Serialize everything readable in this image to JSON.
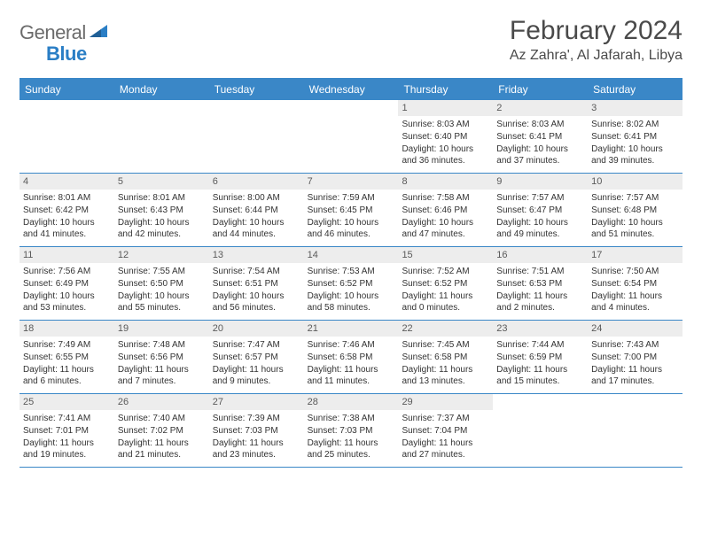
{
  "brand": {
    "gray": "General",
    "blue": "Blue"
  },
  "header": {
    "title": "February 2024",
    "location": "Az Zahra', Al Jafarah, Libya"
  },
  "colors": {
    "accent": "#3a87c7",
    "header_text": "#ffffff",
    "daynum_bg": "#ededed",
    "text": "#333333",
    "muted": "#6b6b6b"
  },
  "weekdays": [
    "Sunday",
    "Monday",
    "Tuesday",
    "Wednesday",
    "Thursday",
    "Friday",
    "Saturday"
  ],
  "weeks": [
    [
      {
        "n": "",
        "sr": "",
        "ss": "",
        "dl": ""
      },
      {
        "n": "",
        "sr": "",
        "ss": "",
        "dl": ""
      },
      {
        "n": "",
        "sr": "",
        "ss": "",
        "dl": ""
      },
      {
        "n": "",
        "sr": "",
        "ss": "",
        "dl": ""
      },
      {
        "n": "1",
        "sr": "Sunrise: 8:03 AM",
        "ss": "Sunset: 6:40 PM",
        "dl": "Daylight: 10 hours and 36 minutes."
      },
      {
        "n": "2",
        "sr": "Sunrise: 8:03 AM",
        "ss": "Sunset: 6:41 PM",
        "dl": "Daylight: 10 hours and 37 minutes."
      },
      {
        "n": "3",
        "sr": "Sunrise: 8:02 AM",
        "ss": "Sunset: 6:41 PM",
        "dl": "Daylight: 10 hours and 39 minutes."
      }
    ],
    [
      {
        "n": "4",
        "sr": "Sunrise: 8:01 AM",
        "ss": "Sunset: 6:42 PM",
        "dl": "Daylight: 10 hours and 41 minutes."
      },
      {
        "n": "5",
        "sr": "Sunrise: 8:01 AM",
        "ss": "Sunset: 6:43 PM",
        "dl": "Daylight: 10 hours and 42 minutes."
      },
      {
        "n": "6",
        "sr": "Sunrise: 8:00 AM",
        "ss": "Sunset: 6:44 PM",
        "dl": "Daylight: 10 hours and 44 minutes."
      },
      {
        "n": "7",
        "sr": "Sunrise: 7:59 AM",
        "ss": "Sunset: 6:45 PM",
        "dl": "Daylight: 10 hours and 46 minutes."
      },
      {
        "n": "8",
        "sr": "Sunrise: 7:58 AM",
        "ss": "Sunset: 6:46 PM",
        "dl": "Daylight: 10 hours and 47 minutes."
      },
      {
        "n": "9",
        "sr": "Sunrise: 7:57 AM",
        "ss": "Sunset: 6:47 PM",
        "dl": "Daylight: 10 hours and 49 minutes."
      },
      {
        "n": "10",
        "sr": "Sunrise: 7:57 AM",
        "ss": "Sunset: 6:48 PM",
        "dl": "Daylight: 10 hours and 51 minutes."
      }
    ],
    [
      {
        "n": "11",
        "sr": "Sunrise: 7:56 AM",
        "ss": "Sunset: 6:49 PM",
        "dl": "Daylight: 10 hours and 53 minutes."
      },
      {
        "n": "12",
        "sr": "Sunrise: 7:55 AM",
        "ss": "Sunset: 6:50 PM",
        "dl": "Daylight: 10 hours and 55 minutes."
      },
      {
        "n": "13",
        "sr": "Sunrise: 7:54 AM",
        "ss": "Sunset: 6:51 PM",
        "dl": "Daylight: 10 hours and 56 minutes."
      },
      {
        "n": "14",
        "sr": "Sunrise: 7:53 AM",
        "ss": "Sunset: 6:52 PM",
        "dl": "Daylight: 10 hours and 58 minutes."
      },
      {
        "n": "15",
        "sr": "Sunrise: 7:52 AM",
        "ss": "Sunset: 6:52 PM",
        "dl": "Daylight: 11 hours and 0 minutes."
      },
      {
        "n": "16",
        "sr": "Sunrise: 7:51 AM",
        "ss": "Sunset: 6:53 PM",
        "dl": "Daylight: 11 hours and 2 minutes."
      },
      {
        "n": "17",
        "sr": "Sunrise: 7:50 AM",
        "ss": "Sunset: 6:54 PM",
        "dl": "Daylight: 11 hours and 4 minutes."
      }
    ],
    [
      {
        "n": "18",
        "sr": "Sunrise: 7:49 AM",
        "ss": "Sunset: 6:55 PM",
        "dl": "Daylight: 11 hours and 6 minutes."
      },
      {
        "n": "19",
        "sr": "Sunrise: 7:48 AM",
        "ss": "Sunset: 6:56 PM",
        "dl": "Daylight: 11 hours and 7 minutes."
      },
      {
        "n": "20",
        "sr": "Sunrise: 7:47 AM",
        "ss": "Sunset: 6:57 PM",
        "dl": "Daylight: 11 hours and 9 minutes."
      },
      {
        "n": "21",
        "sr": "Sunrise: 7:46 AM",
        "ss": "Sunset: 6:58 PM",
        "dl": "Daylight: 11 hours and 11 minutes."
      },
      {
        "n": "22",
        "sr": "Sunrise: 7:45 AM",
        "ss": "Sunset: 6:58 PM",
        "dl": "Daylight: 11 hours and 13 minutes."
      },
      {
        "n": "23",
        "sr": "Sunrise: 7:44 AM",
        "ss": "Sunset: 6:59 PM",
        "dl": "Daylight: 11 hours and 15 minutes."
      },
      {
        "n": "24",
        "sr": "Sunrise: 7:43 AM",
        "ss": "Sunset: 7:00 PM",
        "dl": "Daylight: 11 hours and 17 minutes."
      }
    ],
    [
      {
        "n": "25",
        "sr": "Sunrise: 7:41 AM",
        "ss": "Sunset: 7:01 PM",
        "dl": "Daylight: 11 hours and 19 minutes."
      },
      {
        "n": "26",
        "sr": "Sunrise: 7:40 AM",
        "ss": "Sunset: 7:02 PM",
        "dl": "Daylight: 11 hours and 21 minutes."
      },
      {
        "n": "27",
        "sr": "Sunrise: 7:39 AM",
        "ss": "Sunset: 7:03 PM",
        "dl": "Daylight: 11 hours and 23 minutes."
      },
      {
        "n": "28",
        "sr": "Sunrise: 7:38 AM",
        "ss": "Sunset: 7:03 PM",
        "dl": "Daylight: 11 hours and 25 minutes."
      },
      {
        "n": "29",
        "sr": "Sunrise: 7:37 AM",
        "ss": "Sunset: 7:04 PM",
        "dl": "Daylight: 11 hours and 27 minutes."
      },
      {
        "n": "",
        "sr": "",
        "ss": "",
        "dl": ""
      },
      {
        "n": "",
        "sr": "",
        "ss": "",
        "dl": ""
      }
    ]
  ]
}
